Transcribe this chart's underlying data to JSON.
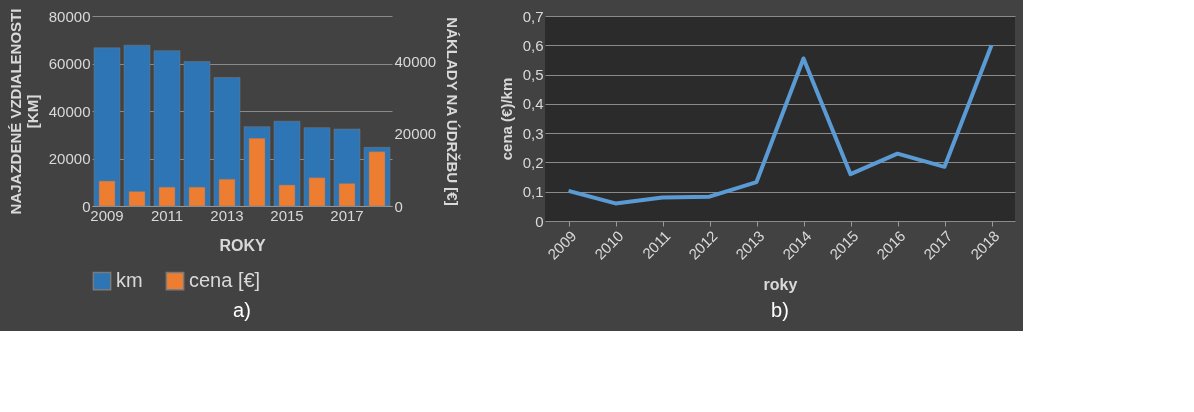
{
  "chart_data": [
    {
      "type": "bar",
      "xlabel": "ROKY",
      "ylabel": "NAJAZDENÉ VZDIALENOSTI [KM]",
      "y2label": "NÁKLADY NA ÚDRŽBU [€]",
      "categories": [
        "2009",
        null,
        "2011",
        null,
        "2013",
        null,
        "2015",
        null,
        "2017",
        null
      ],
      "series": [
        {
          "name": "km",
          "color": "#2e75b6",
          "values": [
            66600,
            67700,
            65400,
            60800,
            54100,
            33400,
            35700,
            33000,
            32400,
            24700
          ]
        },
        {
          "name": "cena [€]",
          "color": "#ed7d31",
          "axis": "y2",
          "values": [
            6900,
            4000,
            5200,
            5200,
            7400,
            18700,
            5800,
            7800,
            6200,
            15000
          ]
        }
      ],
      "ylim": [
        0,
        80000
      ],
      "yticks": [
        0,
        20000,
        40000,
        60000,
        80000
      ],
      "y2lim": [
        0,
        52500
      ],
      "y2ticks": [
        0,
        20000,
        40000
      ],
      "grid": "y",
      "legend": "bottom",
      "annotations": [
        "a)"
      ]
    },
    {
      "type": "line",
      "xlabel": "roky",
      "ylabel": "cena (€)/km",
      "categories": [
        "2009",
        "2010",
        "2011",
        "2012",
        "2013",
        "2014",
        "2015",
        "2016",
        "2017",
        "2018"
      ],
      "series": [
        {
          "color": "#5b9bd5",
          "values": [
            0.103,
            0.06,
            0.08,
            0.083,
            0.133,
            0.555,
            0.16,
            0.23,
            0.185,
            0.6
          ]
        }
      ],
      "ylim": [
        0,
        0.7
      ],
      "yticks": [
        0,
        {
          "value": 0.1,
          "label": "0,1"
        },
        {
          "value": 0.2,
          "label": "0,2"
        },
        {
          "value": 0.3,
          "label": "0,3"
        },
        {
          "value": 0.4,
          "label": "0,4"
        },
        {
          "value": 0.5,
          "label": "0,5"
        },
        {
          "value": 0.6,
          "label": "0,6"
        },
        {
          "value": 0.7,
          "label": "0,7"
        }
      ],
      "grid": "y",
      "line_style": "solid",
      "annotations": [
        "b)"
      ]
    }
  ]
}
